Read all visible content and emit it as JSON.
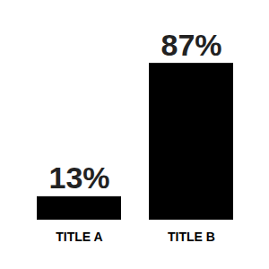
{
  "chart_data": {
    "type": "bar",
    "categories": [
      "TITLE A",
      "TITLE B"
    ],
    "values": [
      13,
      87
    ],
    "value_labels": [
      "13%",
      "87%"
    ],
    "data_labels": true,
    "color": "#000000",
    "ylim": [
      0,
      100
    ],
    "tick_labels": "x"
  }
}
